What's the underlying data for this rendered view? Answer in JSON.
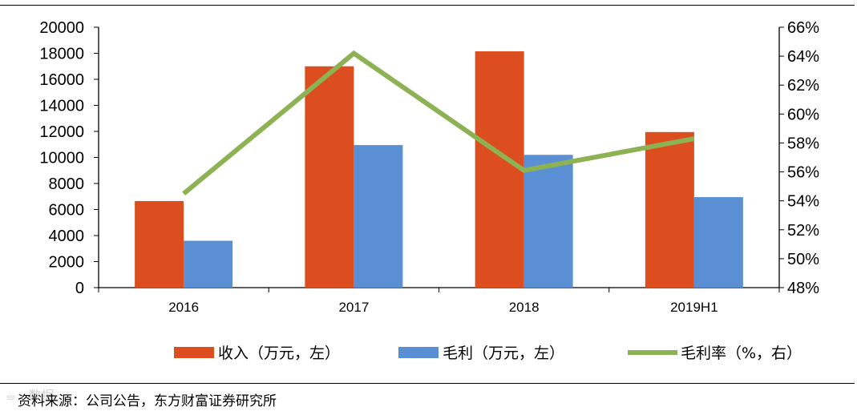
{
  "chart_data": {
    "type": "bar",
    "categories": [
      "2016",
      "2017",
      "2018",
      "2019H1"
    ],
    "series": [
      {
        "name": "收入（万元，左）",
        "kind": "bar",
        "axis": "left",
        "color": "#DC4E1F",
        "values": [
          6650,
          17000,
          18150,
          11950
        ]
      },
      {
        "name": "毛利（万元，左）",
        "kind": "bar",
        "axis": "left",
        "color": "#5B8FD4",
        "values": [
          3600,
          10950,
          10200,
          6950
        ]
      },
      {
        "name": "毛利率（%，右）",
        "kind": "line",
        "axis": "right",
        "color": "#8DB254",
        "values": [
          54.5,
          64.2,
          56.1,
          58.3
        ]
      }
    ],
    "left_axis": {
      "min": 0,
      "max": 20000,
      "step": 2000,
      "tick_labels": [
        "0",
        "2000",
        "4000",
        "6000",
        "8000",
        "10000",
        "12000",
        "14000",
        "16000",
        "18000",
        "20000"
      ]
    },
    "right_axis": {
      "min": 48,
      "max": 66,
      "step": 2,
      "tick_labels": [
        "48%",
        "50%",
        "52%",
        "54%",
        "56%",
        "58%",
        "60%",
        "62%",
        "64%",
        "66%"
      ]
    },
    "legend_position": "bottom",
    "grid": false
  },
  "source_note": "资料来源：公司公告，东方财富证券研究所",
  "watermark": "☕ · 数据"
}
